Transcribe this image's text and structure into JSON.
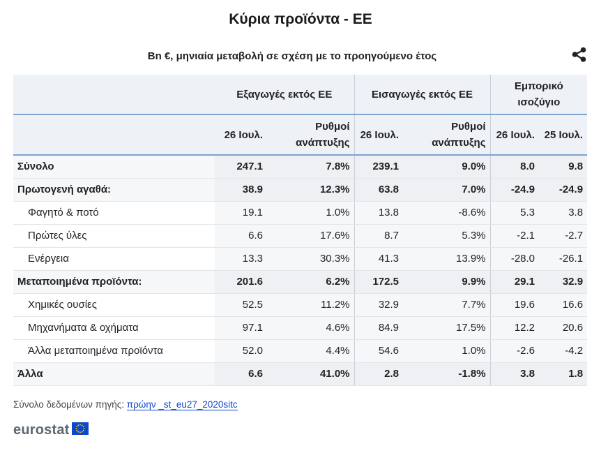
{
  "title": "Κύρια προϊόντα - ΕΕ",
  "subtitle": "Bn €, μηνιαία μεταβολή σε σχέση με το προηγούμενο έτος",
  "share_icon": "share-icon",
  "header": {
    "group_exports": "Εξαγωγές εκτός ΕΕ",
    "group_imports": "Εισαγωγές εκτός ΕΕ",
    "group_balance_line1": "Εμπορικό",
    "group_balance_line2": "ισοζύγιο",
    "col_exp_value": "26 Ιουλ.",
    "col_exp_growth_line1": "Ρυθμοί",
    "col_exp_growth_line2": "ανάπτυξης",
    "col_imp_value": "26 Ιουλ.",
    "col_imp_growth_line1": "Ρυθμοί",
    "col_imp_growth_line2": "ανάπτυξης",
    "col_bal_1": "26 Ιουλ.",
    "col_bal_2": "25 Ιουλ."
  },
  "chart_data": {
    "type": "table",
    "title": "Κύρια προϊόντα - ΕΕ",
    "subtitle": "Bn €, μηνιαία μεταβολή σε σχέση με το προηγούμενο έτος",
    "columns": [
      "Εξαγωγές εκτός ΕΕ 26 Ιουλ.",
      "Εξαγωγές εκτός ΕΕ Ρυθμοί ανάπτυξης",
      "Εισαγωγές εκτός ΕΕ 26 Ιουλ.",
      "Εισαγωγές εκτός ΕΕ Ρυθμοί ανάπτυξης",
      "Εμπορικό ισοζύγιο 26 Ιουλ.",
      "Εμπορικό ισοζύγιο 25 Ιουλ."
    ],
    "rows": [
      {
        "label": "Σύνολο",
        "bold": true,
        "indent": false,
        "values": [
          "247.1",
          "7.8%",
          "239.1",
          "9.0%",
          "8.0",
          "9.8"
        ]
      },
      {
        "label": "Πρωτογενή αγαθά:",
        "bold": true,
        "indent": false,
        "values": [
          "38.9",
          "12.3%",
          "63.8",
          "7.0%",
          "-24.9",
          "-24.9"
        ]
      },
      {
        "label": "Φαγητό & ποτό",
        "bold": false,
        "indent": true,
        "values": [
          "19.1",
          "1.0%",
          "13.8",
          "-8.6%",
          "5.3",
          "3.8"
        ]
      },
      {
        "label": "Πρώτες ύλες",
        "bold": false,
        "indent": true,
        "values": [
          "6.6",
          "17.6%",
          "8.7",
          "5.3%",
          "-2.1",
          "-2.7"
        ]
      },
      {
        "label": "Ενέργεια",
        "bold": false,
        "indent": true,
        "values": [
          "13.3",
          "30.3%",
          "41.3",
          "13.9%",
          "-28.0",
          "-26.1"
        ]
      },
      {
        "label": "Μεταποιημένα προϊόντα:",
        "bold": true,
        "indent": false,
        "values": [
          "201.6",
          "6.2%",
          "172.5",
          "9.9%",
          "29.1",
          "32.9"
        ]
      },
      {
        "label": "Χημικές ουσίες",
        "bold": false,
        "indent": true,
        "values": [
          "52.5",
          "11.2%",
          "32.9",
          "7.7%",
          "19.6",
          "16.6"
        ]
      },
      {
        "label": "Μηχανήματα & οχήματα",
        "bold": false,
        "indent": true,
        "values": [
          "97.1",
          "4.6%",
          "84.9",
          "17.5%",
          "12.2",
          "20.6"
        ]
      },
      {
        "label": "Άλλα μεταποιημένα προϊόντα",
        "bold": false,
        "indent": true,
        "values": [
          "52.0",
          "4.4%",
          "54.6",
          "1.0%",
          "-2.6",
          "-4.2"
        ]
      },
      {
        "label": "Άλλα",
        "bold": true,
        "indent": false,
        "values": [
          "6.6",
          "41.0%",
          "2.8",
          "-1.8%",
          "3.8",
          "1.8"
        ]
      }
    ]
  },
  "footer": {
    "source_label": "Σύνολο δεδομένων πηγής:",
    "source_link": "πρώην _st_eu27_2020sitc"
  },
  "logo": {
    "text": "eurostat",
    "flag_icon": "eu-flag-icon"
  },
  "colors": {
    "header_bg": "#eef2f7",
    "header_border": "#7da3cf",
    "row_value_bg": "#f6f7f9",
    "bold_value_bg": "#eef0f3",
    "link": "#0e47cb",
    "flag_blue": "#0e47cb",
    "flag_star": "#ffd617"
  }
}
